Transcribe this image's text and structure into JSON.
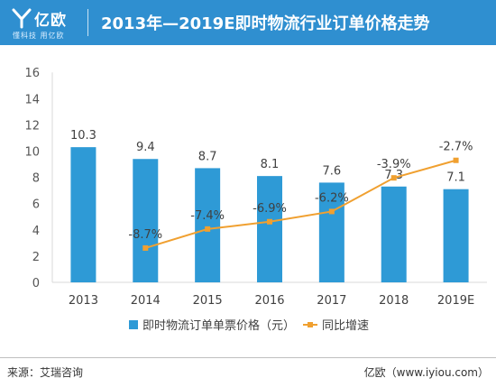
{
  "header": {
    "logo_name": "亿欧",
    "logo_slogan": "懂科技 用亿欧",
    "title": "2013年—2019E即时物流行业订单价格走势"
  },
  "footer": {
    "source": "来源：艾瑞咨询",
    "credit": "亿欧（www.iyiou.com）"
  },
  "colors": {
    "header_bg": "#2f8fd0",
    "bar": "#2e9ad6",
    "line": "#f0a030"
  },
  "chart_data": {
    "type": "bar",
    "categories": [
      "2013",
      "2014",
      "2015",
      "2016",
      "2017",
      "2018",
      "2019E"
    ],
    "series": [
      {
        "name": "即时物流订单单票价格（元）",
        "kind": "bar",
        "values": [
          10.3,
          9.4,
          8.7,
          8.1,
          7.6,
          7.3,
          7.1
        ],
        "labels": [
          "10.3",
          "9.4",
          "8.7",
          "8.1",
          "7.6",
          "7.3",
          "7.1"
        ]
      },
      {
        "name": "同比增速",
        "kind": "line",
        "values": [
          null,
          -8.7,
          -7.4,
          -6.9,
          -6.2,
          -3.9,
          -2.7
        ],
        "labels": [
          "",
          "-8.7%",
          "-7.4%",
          "-6.9%",
          "-6.2%",
          "-3.9%",
          "-2.7%"
        ]
      }
    ],
    "ylim": [
      0,
      16
    ],
    "yticks": [
      "0",
      "2",
      "4",
      "6",
      "8",
      "10",
      "12",
      "14",
      "16"
    ],
    "grid": false,
    "legend_position": "bottom"
  }
}
